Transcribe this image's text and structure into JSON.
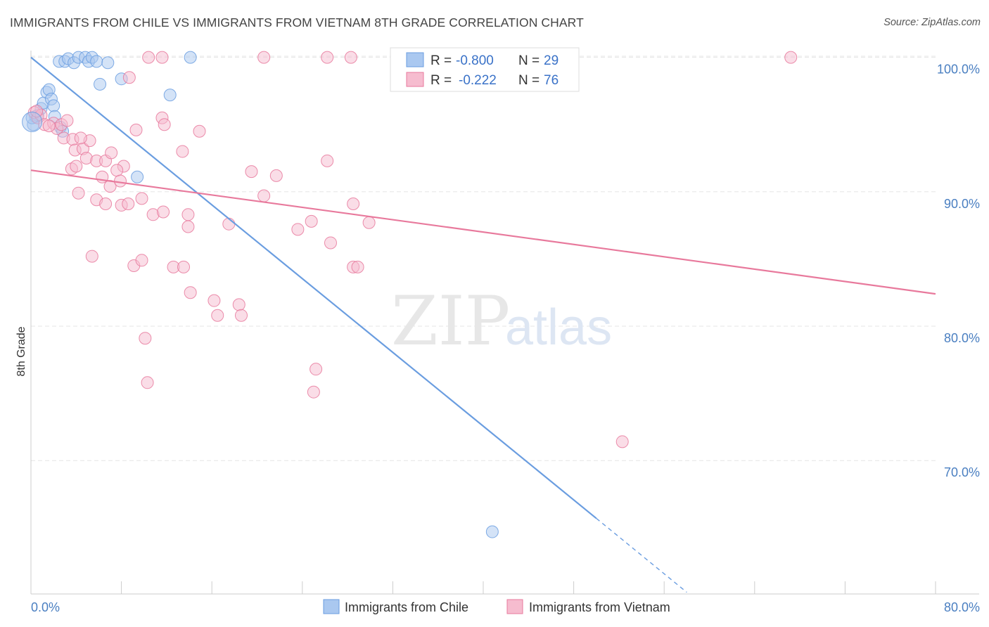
{
  "chart_data": {
    "type": "scatter",
    "title": "IMMIGRANTS FROM CHILE VS IMMIGRANTS FROM VIETNAM 8TH GRADE CORRELATION CHART",
    "source": "Source: ZipAtlas.com",
    "xlabel": "",
    "ylabel": "8th Grade",
    "xlim": [
      0,
      80
    ],
    "ylim": [
      61,
      101.5
    ],
    "x_tick_labels": [
      "0.0%",
      "80.0%"
    ],
    "y_ticks": [
      70,
      80,
      90,
      100
    ],
    "y_tick_labels": [
      "70.0%",
      "80.0%",
      "90.0%",
      "100.0%"
    ],
    "grid": true,
    "watermark": {
      "zip": "ZIP",
      "atlas": "atlas"
    },
    "stats": [
      {
        "series": "Immigrants from Chile",
        "r_label": "R =",
        "r": "-0.800",
        "n_label": "N =",
        "n": "29"
      },
      {
        "series": "Immigrants from Vietnam",
        "r_label": "R =",
        "r": "-0.222",
        "n_label": "N =",
        "n": "76"
      }
    ],
    "series": [
      {
        "name": "Immigrants from Chile",
        "color": "#6a9de0",
        "fill": "#aac8f0",
        "trend": {
          "x0": 0,
          "y0": 100.0,
          "x1": 50,
          "y1": 65.7,
          "dash_to_x": 58,
          "dash_to_y": 60.2
        },
        "points": [
          [
            0.2,
            95.0
          ],
          [
            0.4,
            95.6
          ],
          [
            0.6,
            95.7
          ],
          [
            0.9,
            96.2
          ],
          [
            1.1,
            96.6
          ],
          [
            1.4,
            97.4
          ],
          [
            1.6,
            97.6
          ],
          [
            1.8,
            96.9
          ],
          [
            2.0,
            96.4
          ],
          [
            2.1,
            95.6
          ],
          [
            2.6,
            94.8
          ],
          [
            2.8,
            94.5
          ],
          [
            2.5,
            99.7
          ],
          [
            3.0,
            99.7
          ],
          [
            3.3,
            99.9
          ],
          [
            3.8,
            99.6
          ],
          [
            4.2,
            100.0
          ],
          [
            4.8,
            100.0
          ],
          [
            5.1,
            99.7
          ],
          [
            5.4,
            100.0
          ],
          [
            5.8,
            99.7
          ],
          [
            6.1,
            98.0
          ],
          [
            6.8,
            99.6
          ],
          [
            8.0,
            98.4
          ],
          [
            9.4,
            91.1
          ],
          [
            12.3,
            97.2
          ],
          [
            14.1,
            100.0
          ],
          [
            40.8,
            64.7
          ],
          [
            0.1,
            95.5
          ]
        ]
      },
      {
        "name": "Immigrants from Vietnam",
        "color": "#e8799c",
        "fill": "#f6bccf",
        "trend": {
          "x0": 0,
          "y0": 91.6,
          "x1": 80,
          "y1": 82.4
        },
        "points": [
          [
            0.3,
            95.9
          ],
          [
            0.6,
            95.5
          ],
          [
            0.9,
            95.7
          ],
          [
            1.2,
            95.0
          ],
          [
            2.0,
            95.1
          ],
          [
            2.3,
            94.7
          ],
          [
            2.7,
            95.0
          ],
          [
            3.2,
            95.3
          ],
          [
            2.9,
            94.0
          ],
          [
            3.7,
            93.9
          ],
          [
            3.9,
            93.1
          ],
          [
            4.6,
            93.2
          ],
          [
            5.2,
            93.8
          ],
          [
            4.4,
            94.0
          ],
          [
            3.6,
            91.7
          ],
          [
            4.0,
            91.9
          ],
          [
            4.9,
            92.5
          ],
          [
            5.8,
            92.3
          ],
          [
            6.6,
            92.3
          ],
          [
            7.1,
            92.9
          ],
          [
            8.2,
            91.9
          ],
          [
            7.6,
            91.6
          ],
          [
            6.3,
            91.1
          ],
          [
            7.0,
            90.4
          ],
          [
            7.9,
            90.8
          ],
          [
            4.2,
            89.9
          ],
          [
            5.8,
            89.4
          ],
          [
            6.6,
            89.1
          ],
          [
            8.0,
            89.0
          ],
          [
            8.6,
            89.1
          ],
          [
            9.8,
            89.5
          ],
          [
            10.8,
            88.3
          ],
          [
            11.7,
            88.5
          ],
          [
            13.9,
            88.3
          ],
          [
            13.9,
            87.4
          ],
          [
            17.5,
            87.6
          ],
          [
            20.6,
            89.7
          ],
          [
            19.5,
            91.5
          ],
          [
            21.7,
            91.2
          ],
          [
            23.6,
            87.2
          ],
          [
            24.8,
            87.8
          ],
          [
            26.5,
            86.2
          ],
          [
            26.2,
            92.3
          ],
          [
            28.5,
            89.1
          ],
          [
            29.9,
            87.7
          ],
          [
            5.4,
            85.2
          ],
          [
            9.1,
            84.5
          ],
          [
            9.8,
            84.9
          ],
          [
            12.6,
            84.4
          ],
          [
            13.5,
            84.4
          ],
          [
            28.5,
            84.4
          ],
          [
            28.9,
            84.4
          ],
          [
            14.1,
            82.5
          ],
          [
            16.2,
            81.9
          ],
          [
            18.4,
            81.6
          ],
          [
            16.5,
            80.8
          ],
          [
            18.6,
            80.8
          ],
          [
            10.1,
            79.1
          ],
          [
            10.3,
            75.8
          ],
          [
            25.2,
            76.8
          ],
          [
            25.0,
            75.1
          ],
          [
            52.3,
            71.4
          ],
          [
            11.6,
            95.5
          ],
          [
            11.8,
            95.0
          ],
          [
            14.9,
            94.5
          ],
          [
            9.3,
            94.6
          ],
          [
            13.4,
            93.0
          ],
          [
            8.7,
            98.5
          ],
          [
            11.6,
            100.0
          ],
          [
            20.6,
            100.0
          ],
          [
            26.2,
            100.0
          ],
          [
            28.3,
            100.0
          ],
          [
            67.2,
            100.0
          ],
          [
            10.4,
            100.0
          ],
          [
            0.5,
            96.0
          ],
          [
            1.6,
            94.9
          ]
        ]
      }
    ]
  }
}
